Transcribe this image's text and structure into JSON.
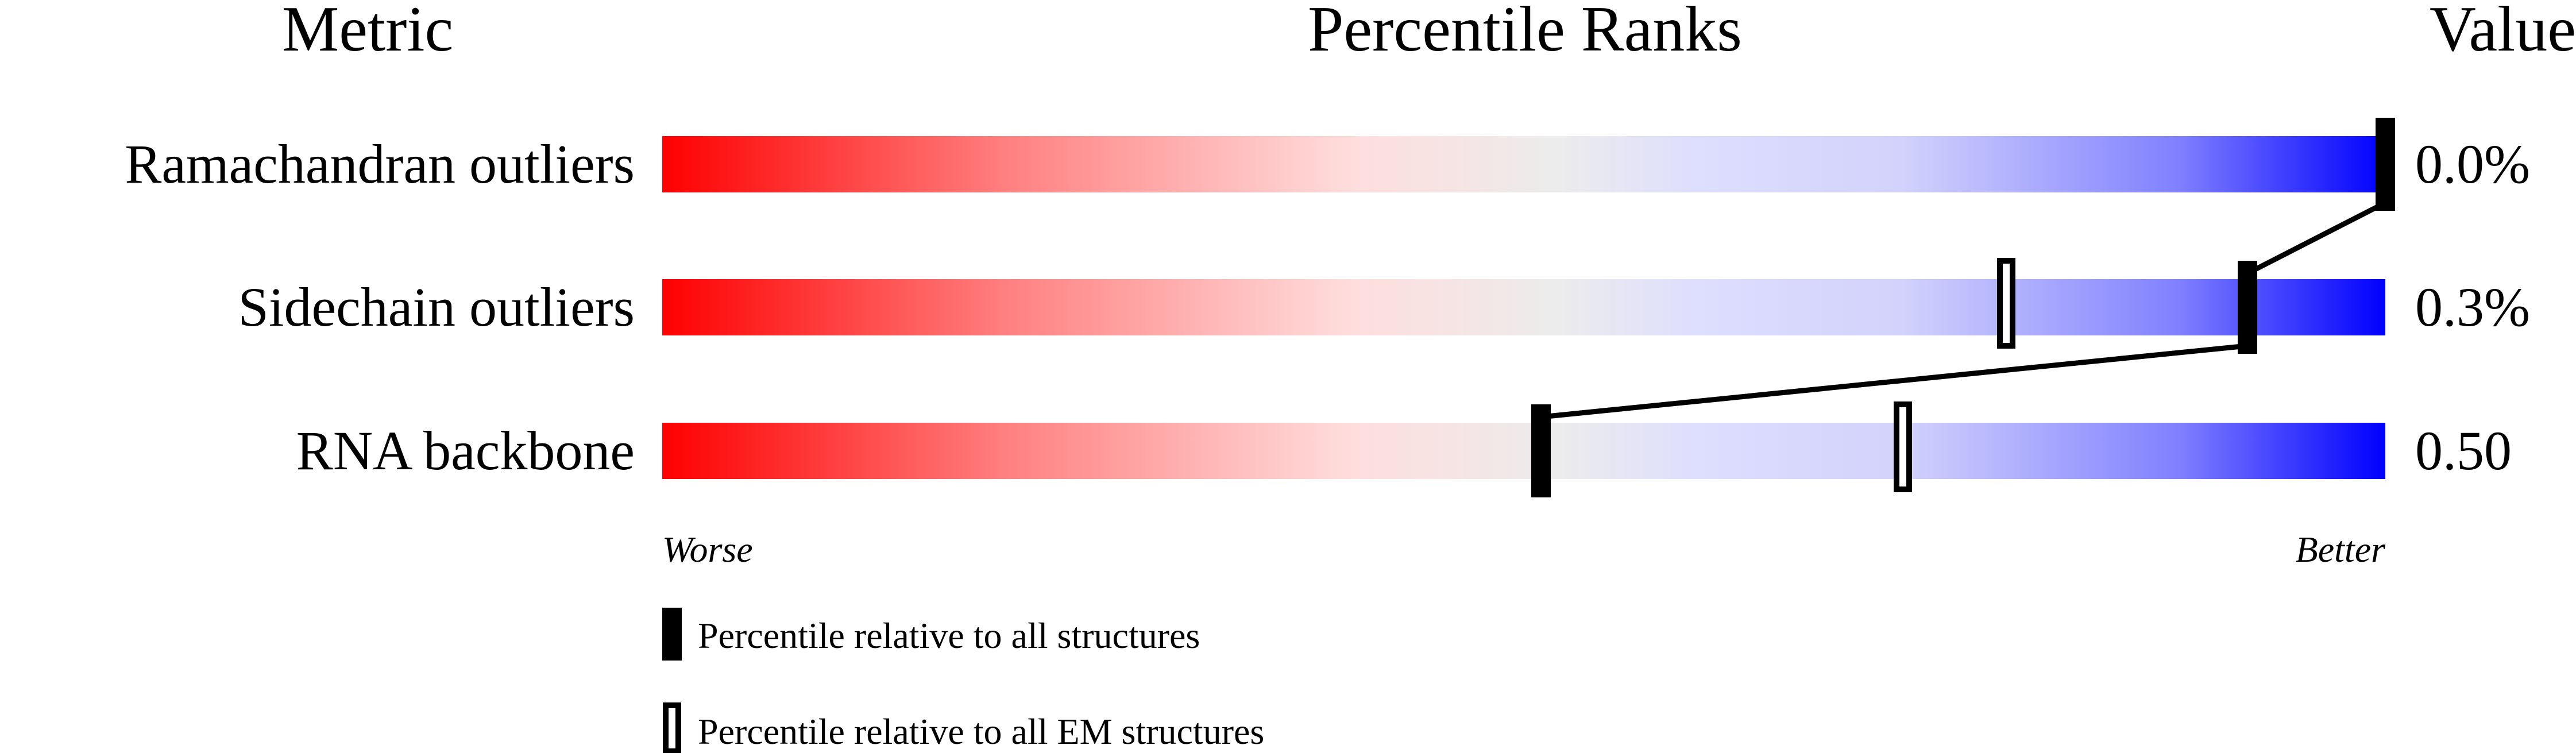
{
  "chart_data": {
    "type": "percentile-bars",
    "headers": {
      "metric": "Metric",
      "ranks": "Percentile Ranks",
      "value": "Value"
    },
    "axis": {
      "left_label": "Worse",
      "right_label": "Better",
      "range": [
        0,
        100
      ]
    },
    "rows": [
      {
        "metric": "Ramachandran outliers",
        "value": "0.0%",
        "percentile_all": 100,
        "percentile_em": null
      },
      {
        "metric": "Sidechain outliers",
        "value": "0.3%",
        "percentile_all": 92,
        "percentile_em": 78
      },
      {
        "metric": "RNA backbone",
        "value": "0.50",
        "percentile_all": 51,
        "percentile_em": 72
      }
    ],
    "legend": {
      "all": "Percentile relative to all structures",
      "em": "Percentile relative to all EM structures"
    },
    "colors": {
      "worse": "#ff0000",
      "middle": "#eeeeee",
      "better": "#0000ff",
      "marker": "#000000"
    }
  }
}
